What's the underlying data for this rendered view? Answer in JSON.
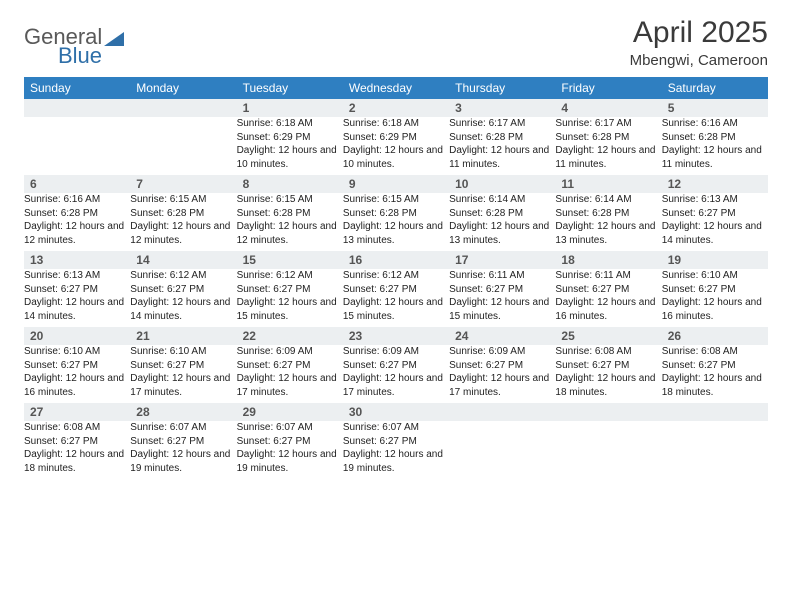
{
  "logo": {
    "part1": "General",
    "part2": "Blue"
  },
  "header": {
    "title": "April 2025",
    "location": "Mbengwi, Cameroon"
  },
  "weekdays": [
    "Sunday",
    "Monday",
    "Tuesday",
    "Wednesday",
    "Thursday",
    "Friday",
    "Saturday"
  ],
  "colors": {
    "header_bg": "#2f7fc1",
    "header_fg": "#ffffff",
    "row_border": "#2f6fa8",
    "daynum_bg": "#eceff1",
    "logo_blue": "#2f6fa8"
  },
  "month": {
    "first_weekday_index": 2,
    "days_in_month": 30
  },
  "days": {
    "1": {
      "sunrise": "6:18 AM",
      "sunset": "6:29 PM",
      "daylight": "12 hours and 10 minutes."
    },
    "2": {
      "sunrise": "6:18 AM",
      "sunset": "6:29 PM",
      "daylight": "12 hours and 10 minutes."
    },
    "3": {
      "sunrise": "6:17 AM",
      "sunset": "6:28 PM",
      "daylight": "12 hours and 11 minutes."
    },
    "4": {
      "sunrise": "6:17 AM",
      "sunset": "6:28 PM",
      "daylight": "12 hours and 11 minutes."
    },
    "5": {
      "sunrise": "6:16 AM",
      "sunset": "6:28 PM",
      "daylight": "12 hours and 11 minutes."
    },
    "6": {
      "sunrise": "6:16 AM",
      "sunset": "6:28 PM",
      "daylight": "12 hours and 12 minutes."
    },
    "7": {
      "sunrise": "6:15 AM",
      "sunset": "6:28 PM",
      "daylight": "12 hours and 12 minutes."
    },
    "8": {
      "sunrise": "6:15 AM",
      "sunset": "6:28 PM",
      "daylight": "12 hours and 12 minutes."
    },
    "9": {
      "sunrise": "6:15 AM",
      "sunset": "6:28 PM",
      "daylight": "12 hours and 13 minutes."
    },
    "10": {
      "sunrise": "6:14 AM",
      "sunset": "6:28 PM",
      "daylight": "12 hours and 13 minutes."
    },
    "11": {
      "sunrise": "6:14 AM",
      "sunset": "6:28 PM",
      "daylight": "12 hours and 13 minutes."
    },
    "12": {
      "sunrise": "6:13 AM",
      "sunset": "6:27 PM",
      "daylight": "12 hours and 14 minutes."
    },
    "13": {
      "sunrise": "6:13 AM",
      "sunset": "6:27 PM",
      "daylight": "12 hours and 14 minutes."
    },
    "14": {
      "sunrise": "6:12 AM",
      "sunset": "6:27 PM",
      "daylight": "12 hours and 14 minutes."
    },
    "15": {
      "sunrise": "6:12 AM",
      "sunset": "6:27 PM",
      "daylight": "12 hours and 15 minutes."
    },
    "16": {
      "sunrise": "6:12 AM",
      "sunset": "6:27 PM",
      "daylight": "12 hours and 15 minutes."
    },
    "17": {
      "sunrise": "6:11 AM",
      "sunset": "6:27 PM",
      "daylight": "12 hours and 15 minutes."
    },
    "18": {
      "sunrise": "6:11 AM",
      "sunset": "6:27 PM",
      "daylight": "12 hours and 16 minutes."
    },
    "19": {
      "sunrise": "6:10 AM",
      "sunset": "6:27 PM",
      "daylight": "12 hours and 16 minutes."
    },
    "20": {
      "sunrise": "6:10 AM",
      "sunset": "6:27 PM",
      "daylight": "12 hours and 16 minutes."
    },
    "21": {
      "sunrise": "6:10 AM",
      "sunset": "6:27 PM",
      "daylight": "12 hours and 17 minutes."
    },
    "22": {
      "sunrise": "6:09 AM",
      "sunset": "6:27 PM",
      "daylight": "12 hours and 17 minutes."
    },
    "23": {
      "sunrise": "6:09 AM",
      "sunset": "6:27 PM",
      "daylight": "12 hours and 17 minutes."
    },
    "24": {
      "sunrise": "6:09 AM",
      "sunset": "6:27 PM",
      "daylight": "12 hours and 17 minutes."
    },
    "25": {
      "sunrise": "6:08 AM",
      "sunset": "6:27 PM",
      "daylight": "12 hours and 18 minutes."
    },
    "26": {
      "sunrise": "6:08 AM",
      "sunset": "6:27 PM",
      "daylight": "12 hours and 18 minutes."
    },
    "27": {
      "sunrise": "6:08 AM",
      "sunset": "6:27 PM",
      "daylight": "12 hours and 18 minutes."
    },
    "28": {
      "sunrise": "6:07 AM",
      "sunset": "6:27 PM",
      "daylight": "12 hours and 19 minutes."
    },
    "29": {
      "sunrise": "6:07 AM",
      "sunset": "6:27 PM",
      "daylight": "12 hours and 19 minutes."
    },
    "30": {
      "sunrise": "6:07 AM",
      "sunset": "6:27 PM",
      "daylight": "12 hours and 19 minutes."
    }
  },
  "labels": {
    "sunrise": "Sunrise: ",
    "sunset": "Sunset: ",
    "daylight": "Daylight: "
  }
}
